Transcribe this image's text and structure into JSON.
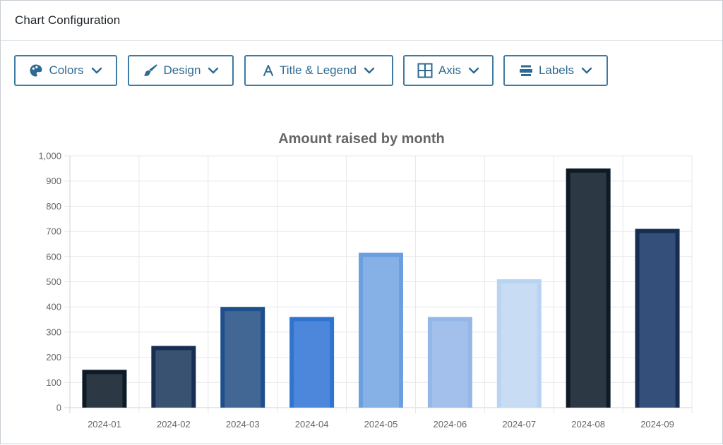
{
  "header": {
    "title": "Chart Configuration"
  },
  "toolbar": {
    "buttons": [
      {
        "label": "Colors",
        "icon": "palette-icon"
      },
      {
        "label": "Design",
        "icon": "paint-brush-icon"
      },
      {
        "label": "Title & Legend",
        "icon": "text-a-icon"
      },
      {
        "label": "Axis",
        "icon": "grid-icon"
      },
      {
        "label": "Labels",
        "icon": "labels-icon"
      }
    ],
    "accent_color": "#3e7aa1"
  },
  "chart_data": {
    "type": "bar",
    "title": "Amount raised by month",
    "categories": [
      "2024-01",
      "2024-02",
      "2024-03",
      "2024-04",
      "2024-05",
      "2024-06",
      "2024-07",
      "2024-08",
      "2024-09"
    ],
    "values": [
      150,
      245,
      400,
      360,
      615,
      360,
      510,
      950,
      710
    ],
    "ylim": [
      0,
      1000
    ],
    "yticks": [
      "0",
      "100",
      "200",
      "300",
      "400",
      "500",
      "600",
      "700",
      "800",
      "900",
      "1,000"
    ],
    "grid": true,
    "bar_fill_colors": [
      "#2c3944",
      "#3a5272",
      "#426795",
      "#4d87dc",
      "#85b1e6",
      "#a2c0eb",
      "#c8dcf4",
      "#2c3944",
      "#34507a"
    ],
    "bar_border_colors": [
      "#0e1b26",
      "#172d52",
      "#1d4f8c",
      "#2f74d0",
      "#6b9fe0",
      "#94b7e8",
      "#b9d3f2",
      "#0e1b26",
      "#172d52"
    ]
  }
}
